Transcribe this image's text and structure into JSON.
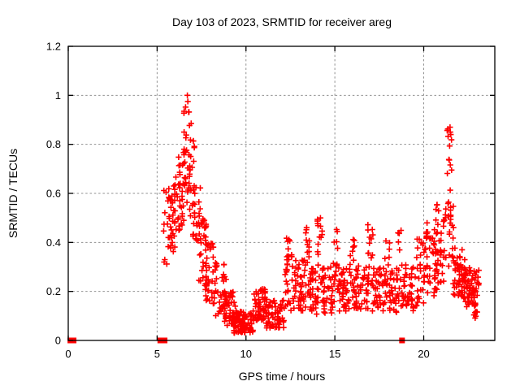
{
  "figure": {
    "background": "#ffffff",
    "border_color": "#000000",
    "grid_color": "#909090",
    "marker_color": "#ff0000"
  },
  "chart_data": {
    "type": "scatter",
    "title": "Day 103 of 2023, SRMTID for receiver areg",
    "xlabel": "GPS time / hours",
    "ylabel": "SRMTID / TECUs",
    "xlim": [
      0,
      24
    ],
    "ylim": [
      0,
      1.2
    ],
    "xtick_values": [
      0,
      5,
      10,
      15,
      20
    ],
    "xtick_labels": [
      "0",
      "5",
      "10",
      "15",
      "20"
    ],
    "ytick_values": [
      0,
      0.2,
      0.4,
      0.6,
      0.8,
      1.0,
      1.2
    ],
    "ytick_labels": [
      "0",
      "0.2",
      "0.4",
      "0.6",
      "0.8",
      "1",
      "1.2"
    ],
    "grid": true,
    "legend": null,
    "marker": "plus",
    "marker_color": "#ff0000",
    "seed": 1303,
    "highlight_points": [
      [
        6.7,
        1.0
      ],
      [
        6.73,
        0.975
      ],
      [
        21.48,
        0.87
      ],
      [
        21.5,
        0.85
      ],
      [
        21.52,
        0.84
      ]
    ],
    "zero_axis_points": [
      0.12,
      0.18,
      0.24,
      0.3,
      5.18,
      5.32,
      5.42,
      18.78
    ],
    "point_cloud_segments": [
      [
        5.35,
        5.9,
        0.3,
        0.62,
        28
      ],
      [
        5.7,
        6.3,
        0.35,
        0.72,
        30
      ],
      [
        6.2,
        6.55,
        0.45,
        0.78,
        24
      ],
      [
        6.5,
        6.85,
        0.55,
        1.0,
        26
      ],
      [
        6.8,
        7.15,
        0.5,
        0.9,
        22
      ],
      [
        7.0,
        7.45,
        0.32,
        0.65,
        26
      ],
      [
        7.3,
        7.8,
        0.22,
        0.5,
        28
      ],
      [
        7.7,
        8.3,
        0.15,
        0.4,
        32
      ],
      [
        8.2,
        8.9,
        0.1,
        0.32,
        38
      ],
      [
        8.8,
        9.4,
        0.06,
        0.2,
        40
      ],
      [
        9.3,
        10.45,
        0.03,
        0.12,
        95
      ],
      [
        10.45,
        11.15,
        0.08,
        0.21,
        55
      ],
      [
        11.1,
        12.2,
        0.05,
        0.17,
        60
      ],
      [
        12.2,
        12.65,
        0.1,
        0.42,
        30
      ],
      [
        12.6,
        13.35,
        0.12,
        0.33,
        48
      ],
      [
        13.35,
        13.65,
        0.15,
        0.47,
        18
      ],
      [
        13.6,
        14.05,
        0.1,
        0.3,
        30
      ],
      [
        14.0,
        14.35,
        0.15,
        0.52,
        20
      ],
      [
        14.3,
        14.95,
        0.1,
        0.3,
        40
      ],
      [
        14.9,
        15.2,
        0.15,
        0.46,
        15
      ],
      [
        15.15,
        15.85,
        0.12,
        0.3,
        42
      ],
      [
        15.8,
        16.1,
        0.15,
        0.45,
        15
      ],
      [
        16.05,
        16.9,
        0.12,
        0.31,
        45
      ],
      [
        16.85,
        17.15,
        0.18,
        0.5,
        15
      ],
      [
        17.1,
        17.85,
        0.12,
        0.3,
        42
      ],
      [
        17.8,
        18.1,
        0.15,
        0.43,
        13
      ],
      [
        18.05,
        18.6,
        0.1,
        0.3,
        30
      ],
      [
        18.5,
        18.75,
        0.15,
        0.46,
        10
      ],
      [
        18.7,
        19.55,
        0.12,
        0.32,
        45
      ],
      [
        19.5,
        20.15,
        0.14,
        0.42,
        32
      ],
      [
        20.1,
        20.75,
        0.18,
        0.48,
        40
      ],
      [
        20.6,
        21.25,
        0.22,
        0.56,
        40
      ],
      [
        21.3,
        21.6,
        0.5,
        0.87,
        16
      ],
      [
        21.35,
        21.7,
        0.3,
        0.55,
        14
      ],
      [
        21.6,
        22.35,
        0.17,
        0.38,
        55
      ],
      [
        22.25,
        23.1,
        0.13,
        0.3,
        65
      ],
      [
        22.75,
        23.05,
        0.09,
        0.16,
        12
      ]
    ]
  }
}
